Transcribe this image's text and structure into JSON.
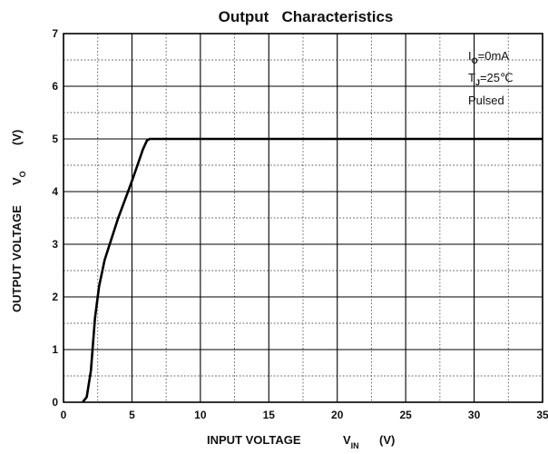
{
  "chart_data": {
    "type": "line",
    "title": "Output   Characteristics",
    "xlabel_main": "INPUT VOLTAGE",
    "xlabel_symbol": "V",
    "xlabel_subscript": "IN",
    "xlabel_unit": "(V)",
    "ylabel_main": "OUTPUT VOLTAGE",
    "ylabel_symbol": "V",
    "ylabel_subscript": "O",
    "ylabel_unit": "(V)",
    "xlim": [
      0,
      35
    ],
    "ylim": [
      0,
      7
    ],
    "x_ticks": [
      "0",
      "5",
      "10",
      "15",
      "20",
      "25",
      "30",
      "35"
    ],
    "y_ticks": [
      "0",
      "1",
      "2",
      "3",
      "4",
      "5",
      "6",
      "7"
    ],
    "grid": "major solid, minor dotted",
    "annotations": {
      "line1_symbol": "I",
      "line1_sub": "O",
      "line1_value": "=0mA",
      "line2_symbol": "T",
      "line2_sub": "J",
      "line2_value": "=25℃",
      "line3": "Pulsed"
    },
    "series": [
      {
        "x": [
          1.4,
          1.7,
          2.0,
          2.3,
          2.6,
          3.0,
          3.5,
          4.0,
          4.5,
          5.0,
          5.4,
          5.8,
          6.1,
          6.3,
          10,
          15,
          20,
          25,
          30,
          35
        ],
        "y": [
          0.0,
          0.1,
          0.6,
          1.6,
          2.2,
          2.7,
          3.1,
          3.5,
          3.85,
          4.2,
          4.5,
          4.8,
          4.97,
          5.0,
          5.0,
          5.0,
          5.0,
          5.0,
          5.0,
          5.0
        ]
      }
    ]
  }
}
